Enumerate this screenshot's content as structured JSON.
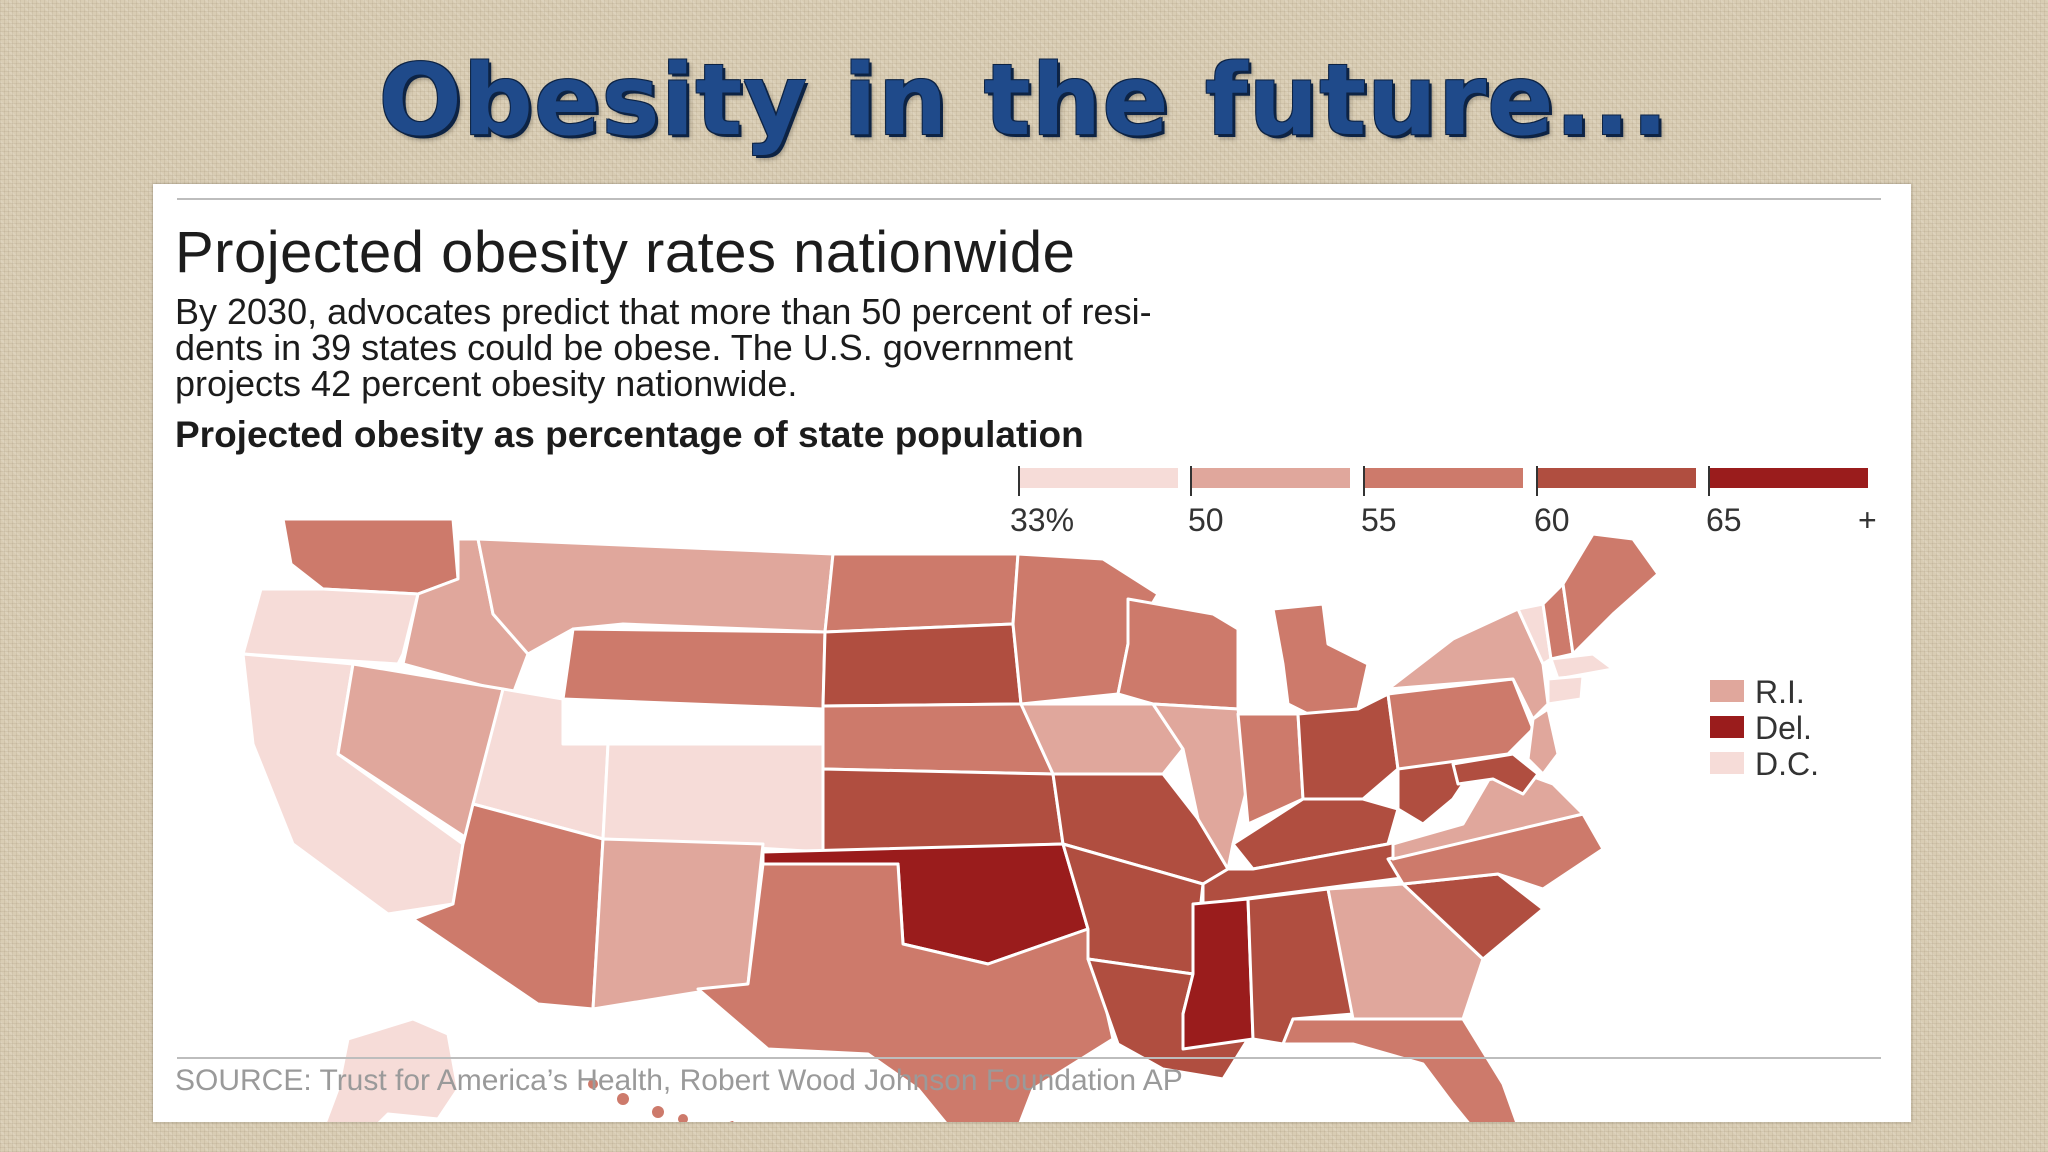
{
  "slide": {
    "title": "Obesity in the future..."
  },
  "graphic": {
    "headline": "Projected obesity rates nationwide",
    "subtext_lines": [
      "By 2030, advocates predict that more than 50 percent of resi-",
      "dents in 39 states could be obese. The U.S. government",
      "projects 42 percent obesity nationwide."
    ],
    "legend_title": "Projected obesity as percentage of state population",
    "scale": [
      {
        "label": "33%",
        "color": "#f6dcd8"
      },
      {
        "label": "50",
        "color": "#e0a79c"
      },
      {
        "label": "55",
        "color": "#cd7a6b"
      },
      {
        "label": "60",
        "color": "#b04e40"
      },
      {
        "label": "65",
        "color": "#9a1c1c"
      },
      {
        "label": "+",
        "color": null
      }
    ],
    "small_states": [
      {
        "label": "R.I.",
        "color": "#e0a79c"
      },
      {
        "label": "Del.",
        "color": "#9a1c1c"
      },
      {
        "label": "D.C.",
        "color": "#f6dcd8"
      }
    ],
    "source": "SOURCE: Trust for America’s Health, Robert Wood Johnson Foundation AP"
  },
  "states": [
    {
      "id": "WA",
      "bin": 2
    },
    {
      "id": "OR",
      "bin": 0
    },
    {
      "id": "CA",
      "bin": 0
    },
    {
      "id": "ID",
      "bin": 1
    },
    {
      "id": "NV",
      "bin": 1
    },
    {
      "id": "MT",
      "bin": 1
    },
    {
      "id": "WY",
      "bin": 2
    },
    {
      "id": "UT",
      "bin": 0
    },
    {
      "id": "CO",
      "bin": 0
    },
    {
      "id": "AZ",
      "bin": 2
    },
    {
      "id": "NM",
      "bin": 1
    },
    {
      "id": "ND",
      "bin": 2
    },
    {
      "id": "SD",
      "bin": 3
    },
    {
      "id": "NE",
      "bin": 2
    },
    {
      "id": "KS",
      "bin": 3
    },
    {
      "id": "OK",
      "bin": 4
    },
    {
      "id": "TX",
      "bin": 2
    },
    {
      "id": "MN",
      "bin": 2
    },
    {
      "id": "IA",
      "bin": 1
    },
    {
      "id": "MO",
      "bin": 3
    },
    {
      "id": "AR",
      "bin": 3
    },
    {
      "id": "LA",
      "bin": 3
    },
    {
      "id": "WI",
      "bin": 2
    },
    {
      "id": "IL",
      "bin": 1
    },
    {
      "id": "MI",
      "bin": 2
    },
    {
      "id": "IN",
      "bin": 2
    },
    {
      "id": "OH",
      "bin": 3
    },
    {
      "id": "KY",
      "bin": 3
    },
    {
      "id": "TN",
      "bin": 3
    },
    {
      "id": "MS",
      "bin": 4
    },
    {
      "id": "AL",
      "bin": 3
    },
    {
      "id": "GA",
      "bin": 1
    },
    {
      "id": "FL",
      "bin": 2
    },
    {
      "id": "SC",
      "bin": 3
    },
    {
      "id": "NC",
      "bin": 2
    },
    {
      "id": "VA",
      "bin": 1
    },
    {
      "id": "WV",
      "bin": 3
    },
    {
      "id": "PA",
      "bin": 2
    },
    {
      "id": "NY",
      "bin": 1
    },
    {
      "id": "VT",
      "bin": 0
    },
    {
      "id": "NH",
      "bin": 2
    },
    {
      "id": "ME",
      "bin": 2
    },
    {
      "id": "MA",
      "bin": 0
    },
    {
      "id": "CT",
      "bin": 0
    },
    {
      "id": "NJ",
      "bin": 1
    },
    {
      "id": "MD",
      "bin": 3
    },
    {
      "id": "AK",
      "bin": 0
    },
    {
      "id": "HI",
      "bin": 2
    }
  ]
}
